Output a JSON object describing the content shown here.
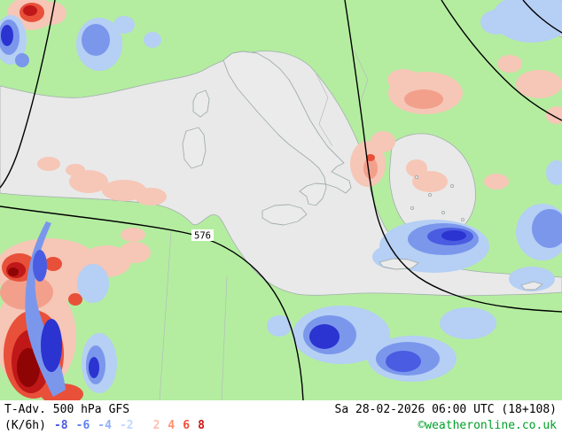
{
  "map": {
    "isoline_label": "576"
  },
  "footer": {
    "parameter": "T-Adv. 500 hPa",
    "model": "GFS",
    "datetime": "Sa 28-02-2026 06:00 UTC (18+108)",
    "unit": "(K/6h)",
    "legend": [
      {
        "label": "-8",
        "color": "#4a5ae0"
      },
      {
        "label": "-6",
        "color": "#6080f0"
      },
      {
        "label": "-4",
        "color": "#90b0f8"
      },
      {
        "label": "-2",
        "color": "#c0d8ff"
      },
      {
        "label": "2",
        "color": "#ffc0b0"
      },
      {
        "label": "4",
        "color": "#ff9070"
      },
      {
        "label": "6",
        "color": "#f0503a"
      },
      {
        "label": "8",
        "color": "#d01515"
      }
    ],
    "copyright": "©weatheronline.co.uk"
  }
}
